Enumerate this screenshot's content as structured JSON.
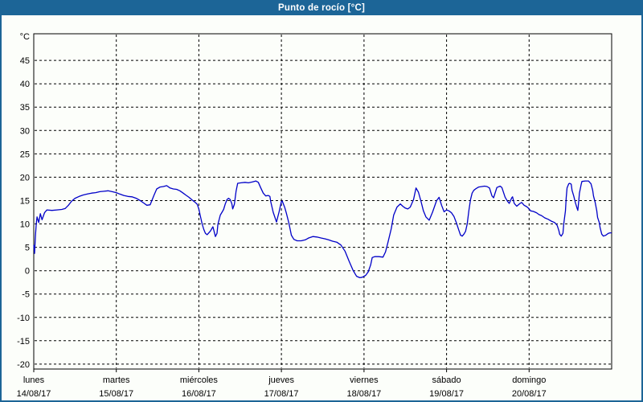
{
  "window": {
    "title": "Punto de rocío [°C]"
  },
  "colors": {
    "titlebar_bg": "#1c6597",
    "titlebar_text": "#ffffff",
    "frame_border": "#1c6597",
    "page_bg": "#fcfefa",
    "plot_bg": "#fcfefa",
    "grid": "#000000",
    "axis": "#000000",
    "text": "#000000",
    "line": "#0000c8"
  },
  "chart_data": {
    "type": "line",
    "title": "Punto de rocío [°C]",
    "legend": "none",
    "y_axis": {
      "unit_label": "°C",
      "ticks": [
        45,
        40,
        35,
        30,
        25,
        20,
        15,
        10,
        5,
        0,
        -5,
        -10,
        -15,
        -20
      ],
      "ylim": [
        -21.05,
        50.7
      ],
      "grid": true
    },
    "x_axis": {
      "xlim_days": [
        0,
        7
      ],
      "grid": true,
      "days": [
        {
          "name": "lunes",
          "date": "14/08/17"
        },
        {
          "name": "martes",
          "date": "15/08/17"
        },
        {
          "name": "miércoles",
          "date": "16/08/17"
        },
        {
          "name": "jueves",
          "date": "17/08/17"
        },
        {
          "name": "viernes",
          "date": "18/08/17"
        },
        {
          "name": "sábado",
          "date": "19/08/17"
        },
        {
          "name": "domingo",
          "date": "20/08/17"
        }
      ]
    },
    "series": [
      {
        "name": "Punto de rocío",
        "color": "#0000c8",
        "points": [
          [
            0.0,
            5.5
          ],
          [
            0.01,
            3.7
          ],
          [
            0.02,
            7.5
          ],
          [
            0.03,
            10.0
          ],
          [
            0.04,
            11.5
          ],
          [
            0.06,
            10.3
          ],
          [
            0.08,
            12.2
          ],
          [
            0.1,
            10.9
          ],
          [
            0.13,
            12.4
          ],
          [
            0.16,
            13.0
          ],
          [
            0.22,
            12.9
          ],
          [
            0.28,
            13.0
          ],
          [
            0.34,
            13.1
          ],
          [
            0.38,
            13.3
          ],
          [
            0.42,
            14.0
          ],
          [
            0.46,
            14.9
          ],
          [
            0.5,
            15.5
          ],
          [
            0.55,
            15.9
          ],
          [
            0.6,
            16.2
          ],
          [
            0.65,
            16.4
          ],
          [
            0.7,
            16.6
          ],
          [
            0.75,
            16.7
          ],
          [
            0.8,
            16.9
          ],
          [
            0.85,
            17.0
          ],
          [
            0.9,
            17.1
          ],
          [
            0.95,
            16.9
          ],
          [
            1.0,
            16.7
          ],
          [
            1.04,
            16.4
          ],
          [
            1.09,
            16.1
          ],
          [
            1.14,
            15.9
          ],
          [
            1.19,
            15.8
          ],
          [
            1.24,
            15.5
          ],
          [
            1.29,
            15.0
          ],
          [
            1.33,
            14.5
          ],
          [
            1.37,
            14.0
          ],
          [
            1.41,
            14.1
          ],
          [
            1.43,
            15.0
          ],
          [
            1.46,
            16.3
          ],
          [
            1.49,
            17.5
          ],
          [
            1.53,
            17.9
          ],
          [
            1.57,
            18.0
          ],
          [
            1.61,
            18.2
          ],
          [
            1.65,
            17.7
          ],
          [
            1.69,
            17.5
          ],
          [
            1.73,
            17.4
          ],
          [
            1.77,
            17.1
          ],
          [
            1.81,
            16.6
          ],
          [
            1.84,
            16.2
          ],
          [
            1.88,
            15.7
          ],
          [
            1.92,
            15.1
          ],
          [
            1.95,
            14.7
          ],
          [
            1.98,
            14.2
          ],
          [
            2.0,
            13.2
          ],
          [
            2.02,
            11.5
          ],
          [
            2.04,
            10.0
          ],
          [
            2.06,
            8.8
          ],
          [
            2.08,
            8.0
          ],
          [
            2.1,
            7.7
          ],
          [
            2.12,
            8.1
          ],
          [
            2.14,
            8.5
          ],
          [
            2.17,
            9.4
          ],
          [
            2.2,
            7.3
          ],
          [
            2.22,
            8.0
          ],
          [
            2.23,
            9.9
          ],
          [
            2.26,
            11.9
          ],
          [
            2.28,
            12.5
          ],
          [
            2.3,
            13.1
          ],
          [
            2.32,
            14.3
          ],
          [
            2.34,
            15.2
          ],
          [
            2.36,
            15.5
          ],
          [
            2.38,
            15.2
          ],
          [
            2.4,
            14.3
          ],
          [
            2.41,
            13.2
          ],
          [
            2.43,
            14.2
          ],
          [
            2.45,
            17.0
          ],
          [
            2.47,
            18.7
          ],
          [
            2.51,
            18.8
          ],
          [
            2.56,
            18.9
          ],
          [
            2.6,
            18.8
          ],
          [
            2.65,
            19.0
          ],
          [
            2.69,
            19.2
          ],
          [
            2.72,
            18.9
          ],
          [
            2.75,
            17.7
          ],
          [
            2.78,
            16.6
          ],
          [
            2.81,
            16.0
          ],
          [
            2.84,
            16.1
          ],
          [
            2.86,
            15.9
          ],
          [
            2.87,
            14.8
          ],
          [
            2.9,
            12.5
          ],
          [
            2.94,
            10.4
          ],
          [
            2.97,
            12.5
          ],
          [
            3.0,
            14.8
          ],
          [
            3.01,
            14.9
          ],
          [
            3.04,
            13.5
          ],
          [
            3.06,
            12.3
          ],
          [
            3.09,
            10.2
          ],
          [
            3.12,
            7.6
          ],
          [
            3.15,
            6.7
          ],
          [
            3.19,
            6.4
          ],
          [
            3.24,
            6.4
          ],
          [
            3.29,
            6.6
          ],
          [
            3.33,
            7.0
          ],
          [
            3.38,
            7.3
          ],
          [
            3.43,
            7.2
          ],
          [
            3.48,
            7.0
          ],
          [
            3.53,
            6.8
          ],
          [
            3.57,
            6.6
          ],
          [
            3.62,
            6.3
          ],
          [
            3.67,
            6.1
          ],
          [
            3.72,
            5.5
          ],
          [
            3.77,
            4.2
          ],
          [
            3.82,
            2.0
          ],
          [
            3.87,
            0.0
          ],
          [
            3.91,
            -1.2
          ],
          [
            3.95,
            -1.5
          ],
          [
            3.98,
            -1.4
          ],
          [
            4.02,
            -1.0
          ],
          [
            4.05,
            -0.3
          ],
          [
            4.08,
            1.2
          ],
          [
            4.1,
            2.8
          ],
          [
            4.13,
            3.0
          ],
          [
            4.18,
            3.0
          ],
          [
            4.23,
            2.9
          ],
          [
            4.26,
            4.0
          ],
          [
            4.29,
            6.0
          ],
          [
            4.33,
            9.0
          ],
          [
            4.36,
            11.9
          ],
          [
            4.4,
            13.6
          ],
          [
            4.44,
            14.3
          ],
          [
            4.47,
            13.8
          ],
          [
            4.5,
            13.4
          ],
          [
            4.53,
            13.2
          ],
          [
            4.56,
            13.6
          ],
          [
            4.6,
            15.2
          ],
          [
            4.63,
            17.7
          ],
          [
            4.66,
            16.8
          ],
          [
            4.69,
            14.9
          ],
          [
            4.72,
            12.8
          ],
          [
            4.75,
            11.5
          ],
          [
            4.79,
            10.8
          ],
          [
            4.83,
            12.5
          ],
          [
            4.88,
            15.0
          ],
          [
            4.91,
            15.7
          ],
          [
            4.94,
            14.0
          ],
          [
            4.97,
            12.6
          ],
          [
            5.0,
            13.0
          ],
          [
            5.03,
            12.8
          ],
          [
            5.06,
            12.4
          ],
          [
            5.09,
            11.6
          ],
          [
            5.12,
            10.2
          ],
          [
            5.15,
            8.6
          ],
          [
            5.17,
            7.6
          ],
          [
            5.19,
            7.4
          ],
          [
            5.21,
            7.8
          ],
          [
            5.23,
            8.4
          ],
          [
            5.25,
            10.0
          ],
          [
            5.27,
            12.8
          ],
          [
            5.29,
            15.2
          ],
          [
            5.31,
            16.6
          ],
          [
            5.33,
            17.2
          ],
          [
            5.36,
            17.6
          ],
          [
            5.39,
            17.9
          ],
          [
            5.43,
            18.0
          ],
          [
            5.46,
            18.1
          ],
          [
            5.49,
            18.0
          ],
          [
            5.52,
            17.7
          ],
          [
            5.55,
            16.0
          ],
          [
            5.57,
            15.6
          ],
          [
            5.61,
            17.8
          ],
          [
            5.65,
            18.1
          ],
          [
            5.67,
            17.8
          ],
          [
            5.71,
            15.7
          ],
          [
            5.74,
            14.8
          ],
          [
            5.76,
            14.4
          ],
          [
            5.79,
            15.6
          ],
          [
            5.8,
            15.8
          ],
          [
            5.82,
            14.4
          ],
          [
            5.85,
            13.8
          ],
          [
            5.89,
            14.4
          ],
          [
            5.91,
            14.6
          ],
          [
            5.94,
            14.0
          ],
          [
            5.97,
            13.7
          ],
          [
            5.99,
            13.4
          ],
          [
            6.02,
            12.8
          ],
          [
            6.05,
            12.7
          ],
          [
            6.09,
            12.4
          ],
          [
            6.12,
            12.0
          ],
          [
            6.15,
            11.8
          ],
          [
            6.19,
            11.3
          ],
          [
            6.23,
            11.0
          ],
          [
            6.27,
            10.6
          ],
          [
            6.31,
            10.3
          ],
          [
            6.34,
            9.7
          ],
          [
            6.36,
            8.6
          ],
          [
            6.37,
            7.8
          ],
          [
            6.39,
            7.4
          ],
          [
            6.41,
            8.0
          ],
          [
            6.42,
            10.0
          ],
          [
            6.44,
            12.8
          ],
          [
            6.45,
            15.7
          ],
          [
            6.46,
            17.7
          ],
          [
            6.48,
            18.6
          ],
          [
            6.49,
            18.7
          ],
          [
            6.51,
            18.5
          ],
          [
            6.52,
            17.2
          ],
          [
            6.54,
            16.0
          ],
          [
            6.56,
            14.6
          ],
          [
            6.58,
            13.4
          ],
          [
            6.59,
            12.9
          ],
          [
            6.6,
            14.6
          ],
          [
            6.61,
            16.6
          ],
          [
            6.63,
            18.4
          ],
          [
            6.64,
            19.1
          ],
          [
            6.68,
            19.2
          ],
          [
            6.72,
            19.2
          ],
          [
            6.75,
            18.6
          ],
          [
            6.77,
            17.2
          ],
          [
            6.78,
            16.0
          ],
          [
            6.8,
            14.6
          ],
          [
            6.82,
            12.8
          ],
          [
            6.83,
            11.4
          ],
          [
            6.85,
            10.3
          ],
          [
            6.86,
            9.2
          ],
          [
            6.88,
            7.8
          ],
          [
            6.9,
            7.4
          ],
          [
            6.93,
            7.6
          ],
          [
            6.96,
            8.0
          ],
          [
            6.98,
            8.1
          ],
          [
            7.0,
            8.1
          ]
        ]
      }
    ]
  }
}
